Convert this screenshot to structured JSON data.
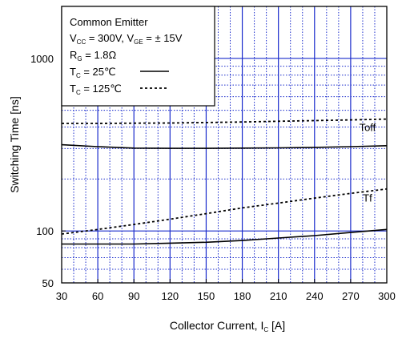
{
  "chart_data": {
    "type": "line",
    "xlabel": {
      "main": "Collector Current, I",
      "sub": "C",
      "unit": " [A]"
    },
    "ylabel": "Switching Time [ns]",
    "xlim": [
      30,
      300
    ],
    "ylim": [
      50,
      2000
    ],
    "yscale": "log",
    "grid": true,
    "x_ticks": [
      30,
      60,
      90,
      120,
      150,
      180,
      210,
      240,
      270,
      300
    ],
    "x_tick_labels": [
      "30",
      "60",
      "90",
      "120",
      "150",
      "180",
      "210",
      "240",
      "270",
      "300"
    ],
    "y_ticks": [
      50,
      100,
      1000
    ],
    "y_tick_labels": [
      "50",
      "100",
      "1000"
    ],
    "legend": {
      "placement": "top-left",
      "lines": [
        {
          "segments": [
            {
              "t": "Common Emitter"
            }
          ]
        },
        {
          "segments": [
            {
              "t": "V"
            },
            {
              "t": "CC",
              "sub": true
            },
            {
              "t": " = 300V, V"
            },
            {
              "t": "GE",
              "sub": true
            },
            {
              "t": " = ± 15V"
            }
          ]
        },
        {
          "segments": [
            {
              "t": "R"
            },
            {
              "t": "G",
              "sub": true
            },
            {
              "t": " = 1.8Ω"
            }
          ]
        },
        {
          "segments": [
            {
              "t": "T"
            },
            {
              "t": "C",
              "sub": true
            },
            {
              "t": " =  25℃"
            }
          ],
          "style": "solid"
        },
        {
          "segments": [
            {
              "t": "T"
            },
            {
              "t": "C",
              "sub": true
            },
            {
              "t": " = 125℃"
            }
          ],
          "style": "dotted"
        }
      ]
    },
    "series": [
      {
        "name": "Toff",
        "condition": "25℃",
        "style": "solid",
        "x": [
          30,
          60,
          90,
          120,
          150,
          180,
          210,
          240,
          270,
          300
        ],
        "values": [
          316,
          308,
          302,
          301,
          301,
          302,
          303,
          305,
          308,
          312
        ]
      },
      {
        "name": "Toff",
        "condition": "125℃",
        "style": "dotted",
        "x": [
          30,
          60,
          90,
          120,
          150,
          180,
          210,
          240,
          270,
          300
        ],
        "values": [
          420,
          420,
          421,
          422,
          425,
          428,
          432,
          436,
          440,
          445
        ]
      },
      {
        "name": "Tf",
        "condition": "25℃",
        "style": "solid",
        "x": [
          30,
          60,
          90,
          120,
          150,
          180,
          210,
          240,
          270,
          300
        ],
        "values": [
          84,
          84,
          84,
          85,
          86,
          88,
          91,
          94,
          98,
          102
        ]
      },
      {
        "name": "Tf",
        "condition": "125℃",
        "style": "dotted",
        "x": [
          30,
          60,
          90,
          120,
          150,
          180,
          210,
          240,
          270,
          300
        ],
        "values": [
          96,
          102,
          109,
          117,
          126,
          136,
          145,
          155,
          165,
          175
        ]
      }
    ],
    "annotations": [
      {
        "text": "Toff",
        "x": 284,
        "y": 380
      },
      {
        "text": "Tf",
        "x": 284,
        "y": 148
      }
    ],
    "colors": {
      "grid": "#1a2bcc",
      "curve": "#000000",
      "frame": "#000000"
    }
  }
}
